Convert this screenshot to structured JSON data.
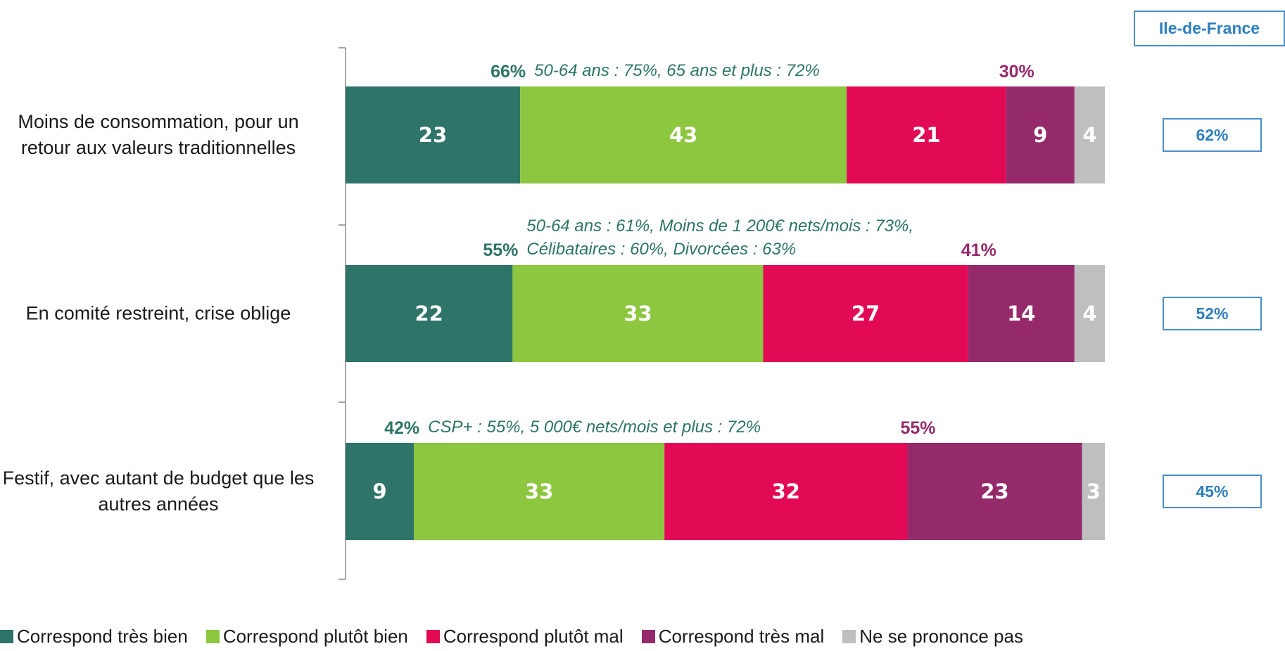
{
  "chart_data": {
    "type": "stacked_bar",
    "categories": [
      "Moins de consommation, pour un retour aux valeurs traditionnelles",
      "En comité restreint, crise oblige",
      "Festif, avec autant de budget que les autres années"
    ],
    "series": [
      {
        "name": "Correspond très bien",
        "color": "#2e7468",
        "values": [
          23,
          22,
          9
        ]
      },
      {
        "name": "Correspond plutôt bien",
        "color": "#8dc63f",
        "values": [
          43,
          33,
          33
        ]
      },
      {
        "name": "Correspond plutôt mal",
        "color": "#e20a55",
        "values": [
          21,
          27,
          32
        ]
      },
      {
        "name": "Correspond très mal",
        "color": "#952a6b",
        "values": [
          9,
          14,
          23
        ]
      },
      {
        "name": "Ne se prononce pas",
        "color": "#bfbfbf",
        "values": [
          4,
          4,
          3
        ]
      }
    ],
    "good_totals": {
      "color": "#2e7468",
      "values": [
        66,
        55,
        42
      ],
      "value_labels": [
        "66%",
        "55%",
        "42%"
      ]
    },
    "bad_totals": {
      "color": "#952a6b",
      "values": [
        30,
        41,
        55
      ],
      "value_labels": [
        "30%",
        "41%",
        "55%"
      ]
    },
    "annotations": [
      "50-64 ans : 75%, 65 ans et plus : 72%",
      "50-64 ans  : 61%, Moins de 1 200€ nets/mois : 73%, Célibataires : 60%, Divorcées : 63%",
      "CSP+ : 55%, 5 000€ nets/mois et plus : 72%"
    ],
    "regional": {
      "title": "Ile-de-France",
      "color": "#2e7fbf",
      "values": [
        62,
        52,
        45
      ],
      "value_labels": [
        "62%",
        "52%",
        "45%"
      ]
    }
  }
}
